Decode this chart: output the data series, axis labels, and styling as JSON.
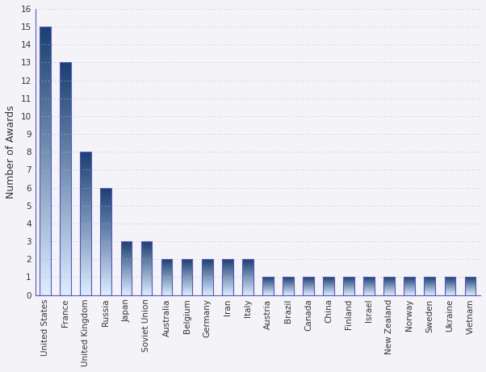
{
  "categories": [
    "United States",
    "France",
    "United Kingdom",
    "Russia",
    "Japan",
    "Soviet Union",
    "Australia",
    "Belgium",
    "Germany",
    "Iran",
    "Italy",
    "Austria",
    "Brazil",
    "Canada",
    "China",
    "Finland",
    "Israel",
    "New Zealand",
    "Norway",
    "Sweden",
    "Ukraine",
    "Vietnam"
  ],
  "values": [
    15,
    13,
    8,
    6,
    3,
    3,
    2,
    2,
    2,
    2,
    2,
    1,
    1,
    1,
    1,
    1,
    1,
    1,
    1,
    1,
    1,
    1
  ],
  "ylabel": "Number of Awards",
  "ylim": [
    0,
    16
  ],
  "yticks": [
    0,
    1,
    2,
    3,
    4,
    5,
    6,
    7,
    8,
    9,
    10,
    11,
    12,
    13,
    14,
    15,
    16
  ],
  "bar_color_top": "#1a4070",
  "bar_color_bottom": "#ddeeff",
  "bar_edge_color": "#5555cc",
  "background_color": "#f4f4f8",
  "plot_bg_color": "#f4f4f8",
  "grid_color": "#bbbbcc",
  "bar_width": 0.55,
  "ylabel_fontsize": 9,
  "tick_fontsize": 7.5
}
